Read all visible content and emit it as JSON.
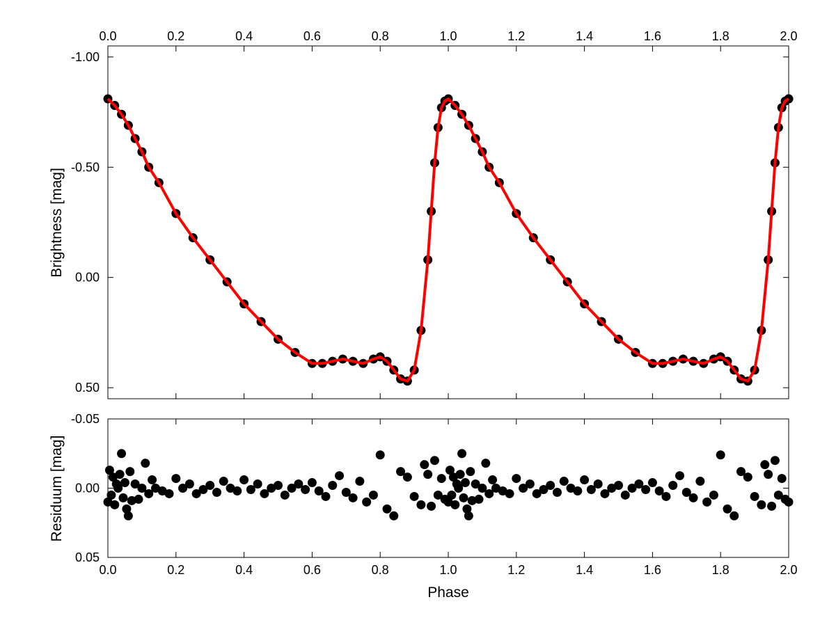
{
  "colors": {
    "background": "#ffffff",
    "axes": "#000000",
    "data_points": "#000000",
    "fit_line": "#ff0000"
  },
  "chart_data": [
    {
      "type": "scatter",
      "panel": "top",
      "title": "",
      "xlabel": "",
      "ylabel": "Brightness [mag]",
      "xlim": [
        0.0,
        2.0
      ],
      "ylim": [
        -1.05,
        0.55
      ],
      "y_inverted": true,
      "grid": false,
      "x_ticks": [
        "0.0",
        "0.2",
        "0.4",
        "0.6",
        "0.8",
        "1.0",
        "1.2",
        "1.4",
        "1.6",
        "1.8",
        "2.0"
      ],
      "x_tick_labels_position": "top",
      "y_ticks": [
        "-1.00",
        "-0.50",
        "0.00",
        "0.50"
      ],
      "phase_period": 1.0,
      "series": [
        {
          "role": "observations",
          "marker": "filled-circle",
          "color": "#000000",
          "x": [
            0.0,
            0.02,
            0.04,
            0.06,
            0.08,
            0.1,
            0.12,
            0.15,
            0.2,
            0.25,
            0.3,
            0.35,
            0.4,
            0.45,
            0.5,
            0.55,
            0.6,
            0.63,
            0.66,
            0.69,
            0.72,
            0.75,
            0.78,
            0.8,
            0.82,
            0.84,
            0.86,
            0.88,
            0.9,
            0.92,
            0.94,
            0.95,
            0.96,
            0.97,
            0.98,
            0.99
          ],
          "y": [
            -0.81,
            -0.78,
            -0.74,
            -0.69,
            -0.63,
            -0.57,
            -0.5,
            -0.43,
            -0.29,
            -0.18,
            -0.08,
            0.02,
            0.12,
            0.2,
            0.28,
            0.34,
            0.39,
            0.39,
            0.38,
            0.37,
            0.38,
            0.39,
            0.37,
            0.36,
            0.38,
            0.42,
            0.46,
            0.47,
            0.42,
            0.24,
            -0.08,
            -0.3,
            -0.52,
            -0.68,
            -0.77,
            -0.8
          ]
        },
        {
          "role": "model-fit",
          "line_style": "solid",
          "color": "#ff0000",
          "x": [
            0.0,
            0.02,
            0.04,
            0.06,
            0.08,
            0.1,
            0.12,
            0.15,
            0.2,
            0.25,
            0.3,
            0.35,
            0.4,
            0.45,
            0.5,
            0.55,
            0.6,
            0.63,
            0.66,
            0.69,
            0.72,
            0.75,
            0.78,
            0.8,
            0.82,
            0.84,
            0.86,
            0.88,
            0.9,
            0.92,
            0.94,
            0.95,
            0.96,
            0.97,
            0.98,
            0.99
          ],
          "y": [
            -0.81,
            -0.78,
            -0.74,
            -0.69,
            -0.63,
            -0.57,
            -0.5,
            -0.43,
            -0.29,
            -0.18,
            -0.08,
            0.02,
            0.12,
            0.2,
            0.28,
            0.34,
            0.39,
            0.39,
            0.38,
            0.37,
            0.38,
            0.39,
            0.37,
            0.36,
            0.38,
            0.42,
            0.46,
            0.47,
            0.42,
            0.24,
            -0.08,
            -0.3,
            -0.52,
            -0.68,
            -0.77,
            -0.8
          ]
        }
      ]
    },
    {
      "type": "scatter",
      "panel": "bottom",
      "title": "",
      "xlabel": "Phase",
      "ylabel": "Residuum [mag]",
      "xlim": [
        0.0,
        2.0
      ],
      "ylim": [
        -0.05,
        0.05
      ],
      "y_inverted": true,
      "grid": false,
      "x_ticks": [
        "0.0",
        "0.2",
        "0.4",
        "0.6",
        "0.8",
        "1.0",
        "1.2",
        "1.4",
        "1.6",
        "1.8",
        "2.0"
      ],
      "y_ticks": [
        "-0.05",
        "0.00",
        "0.05"
      ],
      "phase_period": 1.0,
      "series": [
        {
          "role": "residuals",
          "marker": "filled-circle",
          "color": "#000000",
          "x": [
            0.0,
            0.005,
            0.01,
            0.015,
            0.02,
            0.025,
            0.03,
            0.035,
            0.04,
            0.045,
            0.05,
            0.055,
            0.06,
            0.065,
            0.07,
            0.08,
            0.09,
            0.1,
            0.11,
            0.12,
            0.13,
            0.14,
            0.16,
            0.18,
            0.2,
            0.22,
            0.24,
            0.26,
            0.28,
            0.3,
            0.32,
            0.34,
            0.36,
            0.38,
            0.4,
            0.42,
            0.44,
            0.46,
            0.48,
            0.5,
            0.52,
            0.54,
            0.56,
            0.58,
            0.6,
            0.62,
            0.64,
            0.66,
            0.68,
            0.7,
            0.72,
            0.74,
            0.76,
            0.78,
            0.8,
            0.82,
            0.84,
            0.86,
            0.88,
            0.9,
            0.92,
            0.93,
            0.94,
            0.95,
            0.96,
            0.97,
            0.98,
            0.99
          ],
          "y": [
            0.01,
            -0.013,
            0.005,
            -0.008,
            0.012,
            -0.003,
            0.0,
            -0.01,
            -0.025,
            0.007,
            -0.004,
            0.015,
            0.02,
            -0.012,
            0.009,
            -0.003,
            0.008,
            0.0,
            -0.018,
            0.004,
            -0.006,
            0.0,
            0.002,
            0.004,
            -0.007,
            0.0,
            -0.003,
            0.004,
            0.001,
            -0.002,
            0.003,
            -0.005,
            0.0,
            0.002,
            -0.006,
            0.001,
            -0.003,
            0.004,
            0.0,
            -0.002,
            0.005,
            0.0,
            -0.003,
            0.001,
            -0.004,
            0.002,
            0.006,
            -0.002,
            -0.009,
            0.003,
            0.007,
            -0.005,
            0.01,
            0.005,
            -0.024,
            0.015,
            0.02,
            -0.012,
            -0.008,
            0.006,
            0.012,
            -0.017,
            -0.01,
            0.013,
            -0.02,
            0.005,
            -0.007,
            0.008
          ]
        }
      ]
    }
  ]
}
